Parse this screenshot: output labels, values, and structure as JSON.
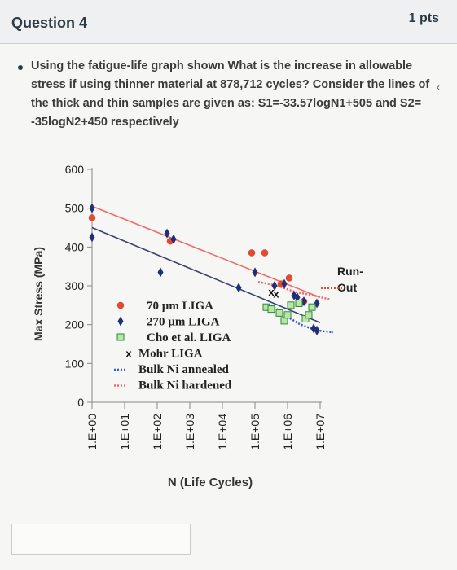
{
  "question": {
    "title": "Question 4",
    "points": "1 pts",
    "text": "Using the fatigue-life graph shown What is the increase in allowable stress if using thinner material at 878,712 cycles? Consider the lines of the thick and thin samples are given as: S1=-33.57logN1+505 and S2= -35logN2+450 respectively"
  },
  "answer": {
    "value": ""
  },
  "chart_data": {
    "type": "scatter",
    "ylabel": "Max Stress (MPa)",
    "xlabel": "N (Life Cycles)",
    "yticks": [
      "0",
      "100",
      "200",
      "300",
      "400",
      "500",
      "600"
    ],
    "ylim": [
      0,
      600
    ],
    "xticks": [
      "1.E+00",
      "1.E+01",
      "1.E+02",
      "1.E+03",
      "1.E+04",
      "1.E+05",
      "1.E+06",
      "1.E+07"
    ],
    "xlim_log10": [
      0,
      7
    ],
    "legend": [
      {
        "marker": "circle-red",
        "label": "70 µm LIGA"
      },
      {
        "marker": "diamond-navy",
        "label": "270 µm LIGA"
      },
      {
        "marker": "square-green",
        "label": "Cho et al. LIGA"
      },
      {
        "marker": "x-black",
        "label": "Mohr LIGA"
      },
      {
        "marker": "dotted-blue",
        "label": "Bulk Ni annealed"
      },
      {
        "marker": "dotted-red",
        "label": "Bulk Ni hardened"
      }
    ],
    "runout_label": [
      "Run-",
      "Out"
    ],
    "series": [
      {
        "name": "70 µm LIGA",
        "points": [
          [
            0,
            475
          ],
          [
            2.4,
            415
          ],
          [
            4.9,
            385
          ],
          [
            5.3,
            385
          ],
          [
            5.8,
            305
          ],
          [
            6.05,
            320
          ],
          [
            6.5,
            260
          ]
        ]
      },
      {
        "name": "270 µm LIGA",
        "points": [
          [
            0,
            500
          ],
          [
            0,
            425
          ],
          [
            2.3,
            435
          ],
          [
            2.5,
            420
          ],
          [
            2.1,
            335
          ],
          [
            5.0,
            335
          ],
          [
            4.5,
            295
          ],
          [
            5.6,
            300
          ],
          [
            5.9,
            305
          ],
          [
            6.2,
            275
          ],
          [
            6.3,
            270
          ],
          [
            6.5,
            260
          ],
          [
            6.9,
            255
          ],
          [
            6.8,
            190
          ],
          [
            6.9,
            185
          ]
        ]
      },
      {
        "name": "Cho et al. LIGA",
        "points": [
          [
            5.35,
            245
          ],
          [
            5.5,
            240
          ],
          [
            5.75,
            230
          ],
          [
            5.9,
            210
          ],
          [
            6.0,
            225
          ],
          [
            6.1,
            250
          ],
          [
            6.35,
            255
          ],
          [
            6.55,
            215
          ],
          [
            6.65,
            225
          ],
          [
            6.75,
            245
          ]
        ]
      },
      {
        "name": "Mohr LIGA",
        "points": [
          [
            5.5,
            285
          ],
          [
            5.65,
            280
          ]
        ]
      }
    ],
    "lines": [
      {
        "name": "S1",
        "color": "#f06a6a",
        "x": [
          0,
          7
        ],
        "y": [
          505,
          270
        ]
      },
      {
        "name": "S2",
        "color": "#39406e",
        "x": [
          0,
          7
        ],
        "y": [
          450,
          205
        ]
      }
    ],
    "dotted_curves": [
      {
        "color": "#f06a6a",
        "points": [
          [
            5.1,
            310
          ],
          [
            5.7,
            300
          ],
          [
            6.2,
            285
          ],
          [
            6.8,
            275
          ],
          [
            7.3,
            265
          ]
        ]
      },
      {
        "color": "#3358c8",
        "points": [
          [
            5.5,
            250
          ],
          [
            6.0,
            220
          ],
          [
            6.4,
            200
          ],
          [
            6.9,
            185
          ],
          [
            7.4,
            180
          ]
        ]
      }
    ]
  }
}
